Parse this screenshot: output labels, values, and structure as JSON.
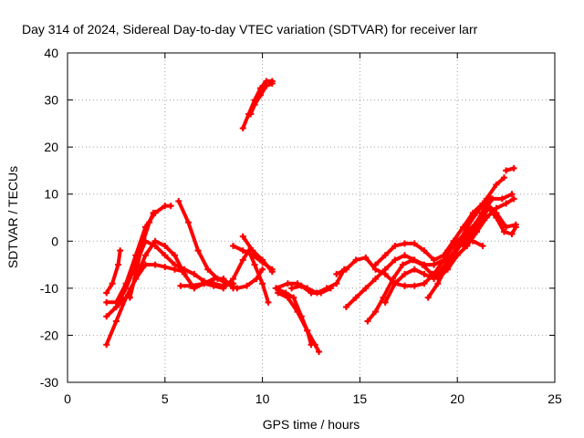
{
  "chart_data": {
    "type": "scatter",
    "title": "Day 314 of 2024, Sidereal Day-to-day VTEC variation (SDTVAR) for receiver larr",
    "xlabel": "GPS time / hours",
    "ylabel": "SDTVAR / TECUs",
    "xlim": [
      0,
      25
    ],
    "ylim": [
      -30,
      40
    ],
    "xticks": [
      "0",
      "5",
      "10",
      "15",
      "20",
      "25"
    ],
    "yticks": [
      "-30",
      "-20",
      "-10",
      "0",
      "10",
      "20",
      "30",
      "40"
    ],
    "grid": true,
    "marker_color": "#ff0000",
    "series": [
      {
        "values": [
          [
            2.0,
            -11
          ],
          [
            2.3,
            -9
          ],
          [
            2.6,
            -5
          ],
          [
            2.7,
            -2
          ]
        ]
      },
      {
        "values": [
          [
            2.0,
            -22
          ],
          [
            2.5,
            -17
          ],
          [
            3.0,
            -12
          ],
          [
            3.5,
            -8
          ],
          [
            4.0,
            -3
          ],
          [
            4.5,
            0
          ],
          [
            5.0,
            -1
          ],
          [
            5.5,
            -3
          ],
          [
            6.0,
            -7
          ],
          [
            6.5,
            -10
          ],
          [
            7.0,
            -9
          ],
          [
            7.5,
            -8
          ],
          [
            8.0,
            -8
          ],
          [
            8.5,
            -10
          ]
        ]
      },
      {
        "values": [
          [
            2.0,
            -13
          ],
          [
            2.5,
            -13
          ],
          [
            3.0,
            -9
          ],
          [
            3.5,
            -3
          ],
          [
            4.0,
            3
          ],
          [
            4.5,
            6
          ],
          [
            5.0,
            7.5
          ],
          [
            5.3,
            7.5
          ]
        ]
      },
      {
        "values": [
          [
            2.0,
            -16
          ],
          [
            2.5,
            -14
          ],
          [
            3.0,
            -10
          ],
          [
            3.5,
            -5
          ],
          [
            4.0,
            0
          ],
          [
            4.5,
            -1
          ],
          [
            5.0,
            -3
          ],
          [
            5.5,
            -5
          ],
          [
            6.0,
            -6
          ],
          [
            6.5,
            -7
          ],
          [
            7.0,
            -8.5
          ],
          [
            7.5,
            -9
          ],
          [
            8.0,
            -9.5
          ],
          [
            8.5,
            -9
          ]
        ]
      },
      {
        "values": [
          [
            2.5,
            -14
          ],
          [
            3.0,
            -12
          ],
          [
            3.5,
            -8
          ],
          [
            4.0,
            -5
          ],
          [
            4.5,
            -5
          ],
          [
            5.0,
            -5.5
          ],
          [
            5.5,
            -6
          ],
          [
            6.0,
            -6.5
          ]
        ]
      },
      {
        "values": [
          [
            3.2,
            -12
          ],
          [
            3.5,
            -7
          ],
          [
            3.8,
            -1
          ],
          [
            4.2,
            4
          ],
          [
            4.4,
            6
          ]
        ]
      },
      {
        "values": [
          [
            5.7,
            8.5
          ],
          [
            6.2,
            4
          ],
          [
            6.7,
            -2
          ],
          [
            7.2,
            -6
          ],
          [
            7.7,
            -8
          ],
          [
            8.2,
            -9
          ],
          [
            8.7,
            -10
          ],
          [
            9.2,
            -9.5
          ],
          [
            9.7,
            -8
          ],
          [
            10.0,
            -6
          ]
        ]
      },
      {
        "values": [
          [
            5.8,
            -9.5
          ],
          [
            6.3,
            -9.5
          ],
          [
            7.0,
            -9
          ],
          [
            7.5,
            -9.5
          ],
          [
            8.0,
            -10
          ],
          [
            8.5,
            -8
          ],
          [
            9.0,
            -4
          ],
          [
            9.3,
            -2
          ],
          [
            9.6,
            -5
          ],
          [
            10.0,
            -9
          ],
          [
            10.3,
            -13
          ]
        ]
      },
      {
        "values": [
          [
            8.5,
            -1
          ],
          [
            9.0,
            -2
          ],
          [
            9.5,
            -3
          ],
          [
            10.0,
            -4.5
          ],
          [
            10.5,
            -6
          ]
        ]
      },
      {
        "values": [
          [
            9.0,
            1
          ],
          [
            9.5,
            -2
          ],
          [
            10.0,
            -4
          ],
          [
            10.5,
            -6.5
          ]
        ]
      },
      {
        "values": [
          [
            9.0,
            24
          ],
          [
            9.3,
            27
          ],
          [
            9.6,
            30
          ],
          [
            9.9,
            32.5
          ],
          [
            10.2,
            34
          ],
          [
            10.5,
            34
          ]
        ]
      },
      {
        "values": [
          [
            9.4,
            27
          ],
          [
            9.6,
            29
          ],
          [
            9.9,
            31
          ],
          [
            10.2,
            33
          ],
          [
            10.5,
            33.5
          ]
        ]
      },
      {
        "values": [
          [
            10.7,
            -10
          ],
          [
            11.2,
            -11
          ],
          [
            11.6,
            -12
          ],
          [
            12.0,
            -16
          ],
          [
            12.3,
            -19
          ],
          [
            12.5,
            -22
          ]
        ]
      },
      {
        "values": [
          [
            10.8,
            -11
          ],
          [
            11.3,
            -12
          ],
          [
            11.8,
            -15
          ],
          [
            12.3,
            -19
          ],
          [
            12.7,
            -22
          ],
          [
            12.9,
            -23.5
          ]
        ]
      },
      {
        "values": [
          [
            10.7,
            -10
          ],
          [
            11.3,
            -9
          ],
          [
            11.8,
            -9
          ],
          [
            12.3,
            -10
          ],
          [
            12.8,
            -11
          ],
          [
            13.3,
            -10
          ],
          [
            13.8,
            -9
          ],
          [
            14.2,
            -6
          ]
        ]
      },
      {
        "values": [
          [
            11.5,
            -10
          ],
          [
            12.0,
            -9.5
          ],
          [
            12.5,
            -11
          ],
          [
            13.0,
            -11
          ],
          [
            13.5,
            -10
          ]
        ]
      },
      {
        "values": [
          [
            13.8,
            -7
          ],
          [
            14.3,
            -6
          ],
          [
            14.8,
            -4
          ],
          [
            15.3,
            -3.5
          ],
          [
            15.8,
            -6
          ],
          [
            16.3,
            -7
          ],
          [
            16.8,
            -9
          ],
          [
            17.3,
            -9.5
          ]
        ]
      },
      {
        "values": [
          [
            14.3,
            -14
          ],
          [
            14.8,
            -12
          ],
          [
            15.3,
            -10
          ],
          [
            15.8,
            -8
          ],
          [
            16.3,
            -6
          ],
          [
            16.8,
            -4
          ],
          [
            17.3,
            -3
          ],
          [
            17.8,
            -4
          ],
          [
            18.3,
            -5
          ],
          [
            18.8,
            -5
          ],
          [
            19.3,
            -4
          ],
          [
            19.8,
            -3
          ]
        ]
      },
      {
        "values": [
          [
            15.4,
            -17
          ],
          [
            15.8,
            -15
          ],
          [
            16.2,
            -12
          ],
          [
            16.7,
            -8
          ],
          [
            17.2,
            -5
          ],
          [
            17.7,
            -4
          ],
          [
            18.2,
            -5
          ],
          [
            18.7,
            -7
          ],
          [
            19.2,
            -6
          ],
          [
            19.7,
            -3
          ],
          [
            20.2,
            0
          ],
          [
            20.7,
            2
          ]
        ]
      },
      {
        "values": [
          [
            15.8,
            -5
          ],
          [
            16.3,
            -3
          ],
          [
            16.8,
            -1
          ],
          [
            17.3,
            -0.5
          ],
          [
            17.8,
            -0.5
          ],
          [
            18.3,
            -2
          ],
          [
            18.8,
            -4
          ],
          [
            19.3,
            -3
          ],
          [
            19.8,
            0
          ],
          [
            20.3,
            3
          ],
          [
            20.8,
            6
          ],
          [
            21.3,
            8
          ],
          [
            21.7,
            9
          ]
        ]
      },
      {
        "values": [
          [
            16.3,
            -13
          ],
          [
            16.8,
            -9
          ],
          [
            17.3,
            -7
          ],
          [
            17.8,
            -6
          ],
          [
            18.3,
            -7
          ],
          [
            18.8,
            -8
          ],
          [
            19.3,
            -6
          ],
          [
            19.8,
            -3
          ],
          [
            20.3,
            0
          ],
          [
            20.8,
            3
          ],
          [
            21.3,
            6
          ],
          [
            21.8,
            9
          ],
          [
            22.3,
            9
          ],
          [
            22.8,
            10
          ]
        ]
      },
      {
        "values": [
          [
            17.3,
            -9.5
          ],
          [
            17.8,
            -9.5
          ],
          [
            18.3,
            -9
          ],
          [
            18.8,
            -7
          ],
          [
            19.3,
            -4
          ],
          [
            19.8,
            -1
          ],
          [
            20.3,
            1
          ],
          [
            20.8,
            0
          ],
          [
            21.3,
            -1
          ]
        ]
      },
      {
        "values": [
          [
            18.5,
            -12
          ],
          [
            19.0,
            -9
          ],
          [
            19.5,
            -5
          ],
          [
            20.0,
            -1
          ],
          [
            20.5,
            3
          ],
          [
            21.0,
            6
          ],
          [
            21.5,
            9
          ],
          [
            22.0,
            12
          ],
          [
            22.4,
            13.5
          ]
        ]
      },
      {
        "values": [
          [
            19.0,
            -8
          ],
          [
            19.5,
            -6
          ],
          [
            20.0,
            -3
          ],
          [
            20.5,
            -1
          ],
          [
            21.0,
            2
          ],
          [
            21.5,
            5
          ],
          [
            22.0,
            7
          ],
          [
            22.5,
            8
          ],
          [
            22.9,
            9
          ]
        ]
      },
      {
        "values": [
          [
            19.5,
            -2
          ],
          [
            20.0,
            0
          ],
          [
            20.5,
            2
          ],
          [
            21.0,
            4
          ],
          [
            21.5,
            8
          ],
          [
            22.0,
            6
          ],
          [
            22.5,
            3
          ],
          [
            23.0,
            3.5
          ]
        ]
      },
      {
        "values": [
          [
            20.3,
            -1
          ],
          [
            20.8,
            2
          ],
          [
            21.3,
            5
          ],
          [
            21.6,
            7
          ],
          [
            22.0,
            5
          ],
          [
            22.4,
            2
          ],
          [
            22.8,
            1.5
          ],
          [
            23.0,
            3
          ]
        ]
      },
      {
        "values": [
          [
            22.5,
            15
          ],
          [
            22.9,
            15.5
          ]
        ]
      }
    ]
  }
}
